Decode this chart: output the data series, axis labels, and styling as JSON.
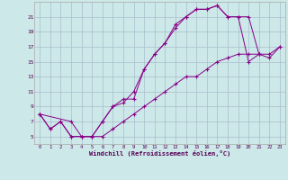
{
  "xlabel": "Windchill (Refroidissement éolien,°C)",
  "bg_color": "#cce8e8",
  "grid_color": "#aabccc",
  "line_color": "#880088",
  "xlim": [
    -0.5,
    23.5
  ],
  "ylim": [
    4,
    23
  ],
  "xticks": [
    0,
    1,
    2,
    3,
    4,
    5,
    6,
    7,
    8,
    9,
    10,
    11,
    12,
    13,
    14,
    15,
    16,
    17,
    18,
    19,
    20,
    21,
    22,
    23
  ],
  "yticks": [
    5,
    7,
    9,
    11,
    13,
    15,
    17,
    19,
    21
  ],
  "series": [
    {
      "x": [
        0,
        1,
        2,
        3,
        4,
        5,
        6,
        7,
        8,
        9,
        10,
        11,
        12,
        13,
        14,
        15,
        16,
        17,
        18,
        19,
        20,
        21
      ],
      "y": [
        8,
        6,
        7,
        5,
        5,
        5,
        7,
        9,
        10,
        10,
        14,
        16,
        17.5,
        19.5,
        21,
        22,
        22,
        22.5,
        21,
        21,
        15,
        16
      ]
    },
    {
      "x": [
        0,
        3,
        4,
        5,
        6,
        7,
        8,
        9,
        10,
        11,
        12,
        13,
        14,
        15,
        16,
        17,
        18,
        19,
        20,
        21,
        22,
        23
      ],
      "y": [
        8,
        7,
        5,
        5,
        7,
        9,
        9.5,
        11,
        14,
        16,
        17.5,
        20,
        21,
        22,
        22,
        22.5,
        21,
        21,
        21,
        16,
        15.5,
        17
      ]
    },
    {
      "x": [
        0,
        1,
        2,
        3,
        4,
        5,
        6,
        7,
        8,
        9,
        10,
        11,
        12,
        13,
        14,
        15,
        16,
        17,
        18,
        19,
        20,
        21,
        22,
        23
      ],
      "y": [
        8,
        6,
        7,
        5,
        5,
        5,
        5,
        6,
        7,
        8,
        9,
        10,
        11,
        12,
        13,
        13,
        14,
        15,
        15.5,
        16,
        16,
        16,
        16,
        17
      ]
    }
  ]
}
